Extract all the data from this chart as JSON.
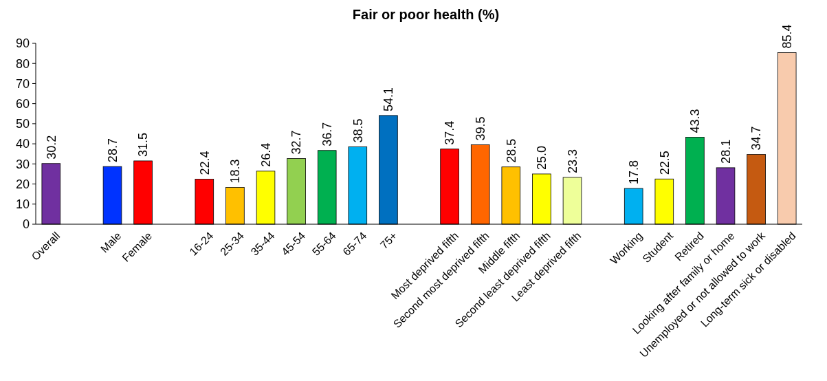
{
  "chart_data": {
    "type": "bar",
    "title": "Fair or poor health (%)",
    "categories": [
      "Overall",
      null,
      "Male",
      "Female",
      null,
      "16-24",
      "25-34",
      "35-44",
      "45-54",
      "55-64",
      "65-74",
      "75+",
      null,
      "Most deprived fifth",
      "Second most deprived fifth",
      "Middle fifth",
      "Second least deprived fifth",
      "Least deprived fifth",
      null,
      "Working",
      "Student",
      "Retired",
      "Looking after family or home",
      "Unemployed or not allowed to work",
      "Long-term sick or disabled"
    ],
    "values": [
      30.2,
      null,
      28.7,
      31.5,
      null,
      22.4,
      18.3,
      26.4,
      32.7,
      36.7,
      38.5,
      54.1,
      null,
      37.4,
      39.5,
      28.5,
      25.0,
      23.3,
      null,
      17.8,
      22.5,
      43.3,
      28.1,
      34.7,
      85.4
    ],
    "value_labels": [
      "30.2",
      null,
      "28.7",
      "31.5",
      null,
      "22.4",
      "18.3",
      "26.4",
      "32.7",
      "36.7",
      "38.5",
      "54.1",
      null,
      "37.4",
      "39.5",
      "28.5",
      "25.0",
      "23.3",
      null,
      "17.8",
      "22.5",
      "43.3",
      "28.1",
      "34.7",
      "85.4"
    ],
    "colors": [
      "#7030a0",
      null,
      "#0033ff",
      "#ff0000",
      null,
      "#ff0000",
      "#ffc000",
      "#ffff00",
      "#92d050",
      "#00b050",
      "#00b0f0",
      "#0070c0",
      null,
      "#ff0000",
      "#ff6600",
      "#ffc000",
      "#ffff00",
      "#eeff99",
      null,
      "#00b0f0",
      "#ffff00",
      "#00b050",
      "#7030a0",
      "#c55a11",
      "#f8cbad"
    ],
    "ylim": [
      0,
      90
    ],
    "yticks": [
      0,
      10,
      20,
      30,
      40,
      50,
      60,
      70,
      80,
      90
    ]
  }
}
